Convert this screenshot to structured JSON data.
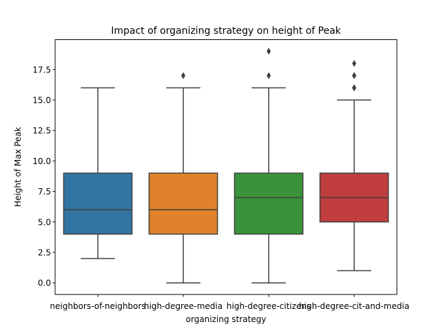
{
  "chart_data": {
    "type": "box",
    "title": "Impact of organizing strategy on height of Peak",
    "xlabel": "organizing strategy",
    "ylabel": "Height of Max Peak",
    "ylim": [
      -0.95,
      19.95
    ],
    "y_ticks": [
      "0.0",
      "2.5",
      "5.0",
      "7.5",
      "10.0",
      "12.5",
      "15.0",
      "17.5"
    ],
    "y_tick_values": [
      0,
      2.5,
      5,
      7.5,
      10,
      12.5,
      15,
      17.5
    ],
    "grid": false,
    "legend": "none",
    "categories": [
      "neighbors-of-neighbors",
      "high-degree-media",
      "high-degree-citizens",
      "high-degree-cit-and-media"
    ],
    "boxes": [
      {
        "category": "neighbors-of-neighbors",
        "whisker_low": 2,
        "q1": 4,
        "median": 6,
        "q3": 9,
        "whisker_high": 16,
        "outliers": [],
        "color": "#3274a1"
      },
      {
        "category": "high-degree-media",
        "whisker_low": 0,
        "q1": 4,
        "median": 6,
        "q3": 9,
        "whisker_high": 16,
        "outliers": [
          17
        ],
        "color": "#e1812c"
      },
      {
        "category": "high-degree-citizens",
        "whisker_low": 0,
        "q1": 4,
        "median": 7,
        "q3": 9,
        "whisker_high": 16,
        "outliers": [
          17,
          19
        ],
        "color": "#3a923a"
      },
      {
        "category": "high-degree-cit-and-media",
        "whisker_low": 1,
        "q1": 5,
        "median": 7,
        "q3": 9,
        "whisker_high": 15,
        "outliers": [
          16,
          16,
          17,
          17,
          18
        ],
        "color": "#c03d3e"
      }
    ],
    "line_color": "#3f3f3f"
  }
}
